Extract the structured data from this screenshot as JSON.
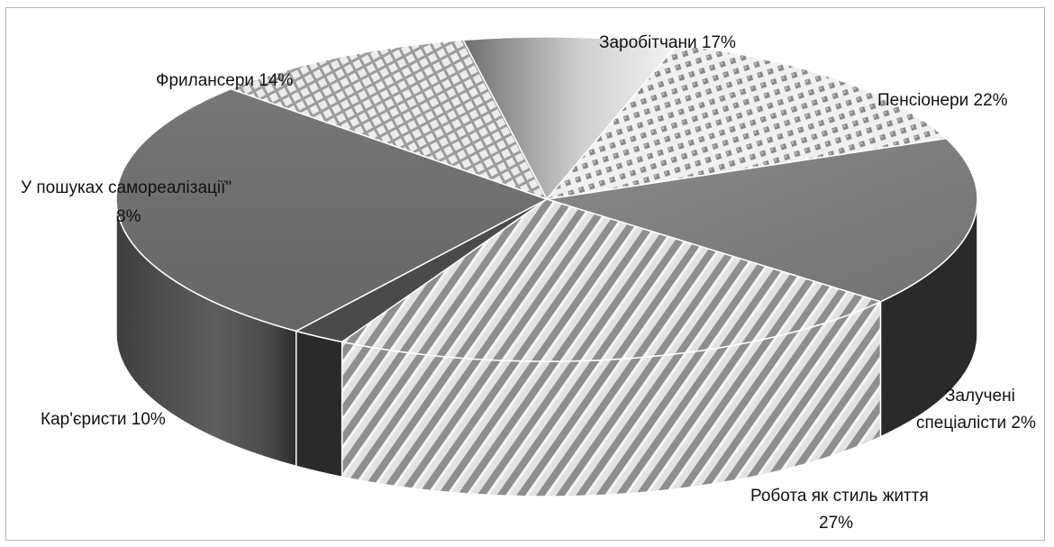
{
  "chart_data": {
    "type": "pie",
    "title": "",
    "slices": [
      {
        "label": "Заробітчани 17%",
        "value": 17,
        "pattern": "solid",
        "color": "#7e7e7e"
      },
      {
        "label": "Пенсіонери 22%",
        "value": 22,
        "pattern": "diagonal-stripes",
        "color": "#bdbdbd"
      },
      {
        "label": "Залучені спеціалісти 2%",
        "value": 2,
        "pattern": "solid",
        "color": "#4a4a4a"
      },
      {
        "label": "Робота як стиль життя 27%",
        "value": 27,
        "pattern": "solid",
        "color": "#6b6b6b"
      },
      {
        "label": "Кар'єристи 10%",
        "value": 10,
        "pattern": "grid",
        "color": "#d5d5d5"
      },
      {
        "label": "У пошуках самореалізації\" 8%",
        "value": 8,
        "pattern": "gradient",
        "color": "#a8a8a8"
      },
      {
        "label": "Фрилансери 14%",
        "value": 14,
        "pattern": "dots",
        "color": "#cfcfcf"
      }
    ],
    "labels": {
      "zarobitchany": "Заробітчани 17%",
      "pensionery": "Пенсіонери 22%",
      "zalucheni_line1": "Залучені",
      "zalucheni_line2": "спеціалісти 2%",
      "robota_line1": "Робота як стиль життя",
      "robota_line2": "27%",
      "karyerysty": "Кар'єристи 10%",
      "samorealizatsiia_line1": "У пошуках самореалізації\"",
      "samorealizatsiia_line2": "8%",
      "frilansery": "Фрилансери 14%"
    }
  }
}
